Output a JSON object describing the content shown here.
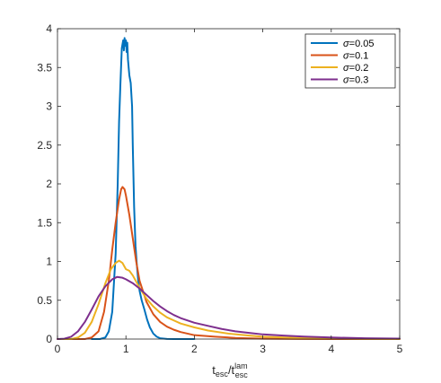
{
  "chart_data": {
    "type": "line",
    "title": "",
    "xlabel": {
      "base": "t",
      "sub1": "esc",
      "sep": "/t",
      "sup": "lam",
      "sub2": "esc"
    },
    "ylabel": "",
    "xlim": [
      0,
      5
    ],
    "ylim": [
      0,
      4
    ],
    "xticks": [
      "0",
      "1",
      "2",
      "3",
      "4",
      "5"
    ],
    "yticks": [
      "0",
      "0.5",
      "1",
      "1.5",
      "2",
      "2.5",
      "3",
      "3.5",
      "4"
    ],
    "grid": false,
    "legend_position": "top-right",
    "series": [
      {
        "name": "σ=0.05",
        "legend_symbol": "σ",
        "legend_value": "=0.05",
        "color": "#0072BD",
        "points": [
          [
            0.5,
            0
          ],
          [
            0.62,
            0
          ],
          [
            0.7,
            0.02
          ],
          [
            0.75,
            0.1
          ],
          [
            0.8,
            0.35
          ],
          [
            0.85,
            1.1
          ],
          [
            0.88,
            2.0
          ],
          [
            0.9,
            2.8
          ],
          [
            0.92,
            3.3
          ],
          [
            0.94,
            3.75
          ],
          [
            0.96,
            3.85
          ],
          [
            0.97,
            3.72
          ],
          [
            0.98,
            3.88
          ],
          [
            0.99,
            3.78
          ],
          [
            1.0,
            3.85
          ],
          [
            1.01,
            3.7
          ],
          [
            1.02,
            3.82
          ],
          [
            1.03,
            3.6
          ],
          [
            1.05,
            3.4
          ],
          [
            1.07,
            3.3
          ],
          [
            1.09,
            3.0
          ],
          [
            1.1,
            2.5
          ],
          [
            1.12,
            1.7
          ],
          [
            1.14,
            1.2
          ],
          [
            1.16,
            0.95
          ],
          [
            1.18,
            0.75
          ],
          [
            1.2,
            0.62
          ],
          [
            1.23,
            0.5
          ],
          [
            1.27,
            0.38
          ],
          [
            1.31,
            0.25
          ],
          [
            1.35,
            0.15
          ],
          [
            1.4,
            0.07
          ],
          [
            1.45,
            0.03
          ],
          [
            1.5,
            0.01
          ],
          [
            1.6,
            0.002
          ],
          [
            1.7,
            0
          ],
          [
            2.0,
            0
          ]
        ]
      },
      {
        "name": "σ=0.1",
        "legend_symbol": "σ",
        "legend_value": "=0.1",
        "color": "#D95319",
        "points": [
          [
            0,
            0
          ],
          [
            0.4,
            0
          ],
          [
            0.5,
            0.02
          ],
          [
            0.6,
            0.1
          ],
          [
            0.68,
            0.35
          ],
          [
            0.75,
            0.75
          ],
          [
            0.8,
            1.15
          ],
          [
            0.85,
            1.5
          ],
          [
            0.9,
            1.8
          ],
          [
            0.93,
            1.93
          ],
          [
            0.95,
            1.96
          ],
          [
            0.98,
            1.93
          ],
          [
            1.0,
            1.85
          ],
          [
            1.05,
            1.6
          ],
          [
            1.1,
            1.3
          ],
          [
            1.15,
            1.0
          ],
          [
            1.2,
            0.75
          ],
          [
            1.3,
            0.48
          ],
          [
            1.4,
            0.32
          ],
          [
            1.5,
            0.22
          ],
          [
            1.6,
            0.16
          ],
          [
            1.7,
            0.12
          ],
          [
            1.8,
            0.09
          ],
          [
            2.0,
            0.05
          ],
          [
            2.3,
            0.03
          ],
          [
            2.6,
            0.015
          ],
          [
            3.0,
            0.005
          ],
          [
            3.5,
            0.002
          ],
          [
            4.0,
            0
          ],
          [
            5,
            0
          ]
        ]
      },
      {
        "name": "σ=0.2",
        "legend_symbol": "σ",
        "legend_value": "=0.2",
        "color": "#EDB120",
        "points": [
          [
            0,
            0
          ],
          [
            0.2,
            0
          ],
          [
            0.3,
            0.02
          ],
          [
            0.4,
            0.08
          ],
          [
            0.5,
            0.22
          ],
          [
            0.6,
            0.45
          ],
          [
            0.7,
            0.72
          ],
          [
            0.78,
            0.9
          ],
          [
            0.85,
            0.98
          ],
          [
            0.9,
            1.01
          ],
          [
            0.95,
            0.98
          ],
          [
            1.0,
            0.9
          ],
          [
            1.05,
            0.88
          ],
          [
            1.1,
            0.82
          ],
          [
            1.2,
            0.66
          ],
          [
            1.3,
            0.52
          ],
          [
            1.4,
            0.42
          ],
          [
            1.5,
            0.34
          ],
          [
            1.6,
            0.28
          ],
          [
            1.7,
            0.24
          ],
          [
            1.8,
            0.2
          ],
          [
            2.0,
            0.15
          ],
          [
            2.2,
            0.11
          ],
          [
            2.5,
            0.07
          ],
          [
            2.8,
            0.045
          ],
          [
            3.0,
            0.03
          ],
          [
            3.5,
            0.015
          ],
          [
            4.0,
            0.007
          ],
          [
            4.5,
            0.003
          ],
          [
            5,
            0.001
          ]
        ]
      },
      {
        "name": "σ=0.3",
        "legend_symbol": "σ",
        "legend_value": "=0.3",
        "color": "#7E2F8E",
        "points": [
          [
            0,
            0
          ],
          [
            0.1,
            0.005
          ],
          [
            0.2,
            0.03
          ],
          [
            0.3,
            0.1
          ],
          [
            0.4,
            0.22
          ],
          [
            0.5,
            0.38
          ],
          [
            0.6,
            0.55
          ],
          [
            0.7,
            0.68
          ],
          [
            0.8,
            0.77
          ],
          [
            0.87,
            0.8
          ],
          [
            0.95,
            0.79
          ],
          [
            1.0,
            0.77
          ],
          [
            1.1,
            0.72
          ],
          [
            1.2,
            0.65
          ],
          [
            1.3,
            0.57
          ],
          [
            1.4,
            0.49
          ],
          [
            1.5,
            0.42
          ],
          [
            1.6,
            0.36
          ],
          [
            1.7,
            0.31
          ],
          [
            1.8,
            0.27
          ],
          [
            2.0,
            0.21
          ],
          [
            2.2,
            0.17
          ],
          [
            2.4,
            0.13
          ],
          [
            2.6,
            0.1
          ],
          [
            2.8,
            0.08
          ],
          [
            3.0,
            0.06
          ],
          [
            3.3,
            0.045
          ],
          [
            3.6,
            0.032
          ],
          [
            4.0,
            0.02
          ],
          [
            4.5,
            0.01
          ],
          [
            5,
            0.006
          ]
        ]
      }
    ]
  }
}
